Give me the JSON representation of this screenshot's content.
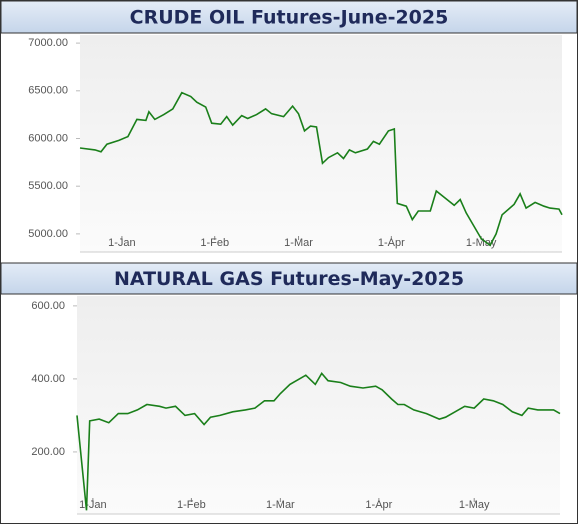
{
  "chart_data": [
    {
      "type": "line",
      "title": "CRUDE OIL Futures-June-2025",
      "color": "#1a7f1a",
      "x": [
        "18-Dec",
        "23-Dec",
        "25-Dec",
        "27-Dec",
        "31-Dec",
        "3-Jan",
        "6-Jan",
        "9-Jan",
        "10-Jan",
        "12-Jan",
        "15-Jan",
        "18-Jan",
        "21-Jan",
        "24-Jan",
        "26-Jan",
        "29-Jan",
        "31-Jan",
        "3-Feb",
        "5-Feb",
        "7-Feb",
        "10-Feb",
        "12-Feb",
        "15-Feb",
        "18-Feb",
        "20-Feb",
        "24-Feb",
        "27-Feb",
        "1-Mar",
        "3-Mar",
        "5-Mar",
        "7-Mar",
        "9-Mar",
        "11-Mar",
        "14-Mar",
        "16-Mar",
        "18-Mar",
        "20-Mar",
        "24-Mar",
        "26-Mar",
        "28-Mar",
        "31-Mar",
        "2-Apr",
        "3-Apr",
        "6-Apr",
        "8-Apr",
        "10-Apr",
        "14-Apr",
        "16-Apr",
        "20-Apr",
        "22-Apr",
        "24-Apr",
        "26-Apr",
        "1-May",
        "4-May",
        "6-May",
        "8-May",
        "12-May",
        "14-May",
        "16-May",
        "19-May",
        "22-May",
        "24-May",
        "27-May",
        "28-May"
      ],
      "values": [
        5900,
        5880,
        5860,
        5940,
        5980,
        6020,
        6200,
        6190,
        6280,
        6200,
        6250,
        6310,
        6480,
        6440,
        6380,
        6330,
        6160,
        6150,
        6230,
        6140,
        6240,
        6210,
        6250,
        6310,
        6260,
        6230,
        6340,
        6260,
        6080,
        6130,
        6120,
        5740,
        5800,
        5850,
        5790,
        5880,
        5850,
        5890,
        5970,
        5940,
        6080,
        6100,
        5320,
        5290,
        5150,
        5240,
        5240,
        5450,
        5350,
        5300,
        5360,
        5220,
        4950,
        4880,
        5000,
        5200,
        5310,
        5420,
        5270,
        5330,
        5290,
        5270,
        5260,
        5200
      ],
      "xlim": [
        "18-Dec",
        "28-May"
      ],
      "xticks": [
        "1-Jan",
        "1-Feb",
        "1-Mar",
        "1-Apr",
        "1-May"
      ],
      "ylim": [
        4810,
        7085
      ],
      "yticks": [
        {
          "value": 5000,
          "label": "5000.00"
        },
        {
          "value": 5500,
          "label": "5500.00"
        },
        {
          "value": 6000,
          "label": "6000.00"
        },
        {
          "value": 6500,
          "label": "6500.00"
        },
        {
          "value": 7000,
          "label": "7000.00"
        }
      ]
    },
    {
      "type": "line",
      "title": "NATURAL GAS Futures-May-2025",
      "color": "#1a7f1a",
      "x": [
        "27-Dec",
        "30-Dec",
        "31-Dec",
        "3-Jan",
        "6-Jan",
        "9-Jan",
        "12-Jan",
        "15-Jan",
        "18-Jan",
        "22-Jan",
        "24-Jan",
        "27-Jan",
        "30-Jan",
        "2-Feb",
        "5-Feb",
        "7-Feb",
        "10-Feb",
        "14-Feb",
        "18-Feb",
        "21-Feb",
        "24-Feb",
        "27-Feb",
        "1-Mar",
        "4-Mar",
        "7-Mar",
        "9-Mar",
        "12-Mar",
        "14-Mar",
        "16-Mar",
        "20-Mar",
        "23-Mar",
        "27-Mar",
        "31-Mar",
        "2-Apr",
        "5-Apr",
        "7-Apr",
        "9-Apr",
        "12-Apr",
        "16-Apr",
        "20-Apr",
        "22-Apr",
        "25-Apr",
        "28-Apr",
        "1-May",
        "4-May",
        "7-May",
        "10-May",
        "13-May",
        "16-May",
        "18-May",
        "21-May",
        "26-May",
        "28-May"
      ],
      "values": [
        300,
        40,
        285,
        290,
        280,
        305,
        305,
        315,
        330,
        325,
        320,
        325,
        300,
        305,
        275,
        295,
        300,
        310,
        315,
        320,
        340,
        340,
        360,
        385,
        400,
        410,
        385,
        415,
        395,
        390,
        380,
        375,
        380,
        370,
        345,
        330,
        330,
        315,
        305,
        290,
        295,
        310,
        325,
        320,
        345,
        340,
        330,
        310,
        300,
        320,
        315,
        315,
        305
      ],
      "xlim": [
        "27-Dec",
        "28-May"
      ],
      "xticks": [
        "1-Jan",
        "1-Feb",
        "1-Mar",
        "1-Apr",
        "1-May"
      ],
      "ylim": [
        30,
        627
      ],
      "yticks": [
        {
          "value": 200,
          "label": "200.00"
        },
        {
          "value": 400,
          "label": "400.00"
        },
        {
          "value": 600,
          "label": "600.00"
        }
      ]
    }
  ]
}
